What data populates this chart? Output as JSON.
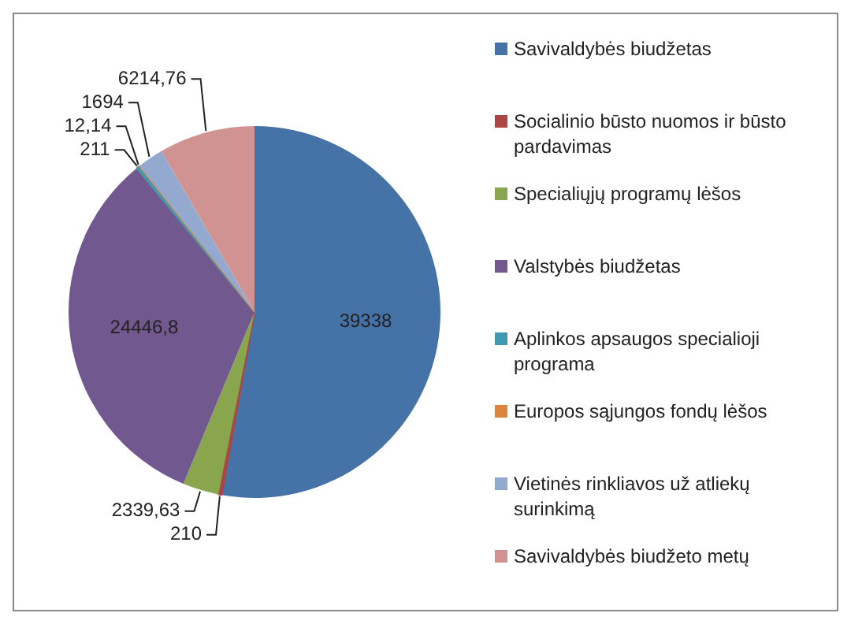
{
  "chart_data": {
    "type": "pie",
    "categories": [
      "Savivaldybės biudžetas",
      "Socialinio būsto nuomos ir būsto pardavimas",
      "Specialiųjų programų lėšos",
      "Valstybės biudžetas",
      "Aplinkos apsaugos specialioji programa",
      "Europos sąjungos fondų lėšos",
      "Vietinės rinkliavos už atliekų surinkimą",
      "Savivaldybės biudžeto metų"
    ],
    "values": [
      39338,
      210,
      2339.63,
      24446.8,
      211,
      12.14,
      1694,
      6214.76
    ],
    "value_labels": [
      "39338",
      "210",
      "2339,63",
      "24446,8",
      "211",
      "12,14",
      "1694",
      "6214,76"
    ],
    "colors": [
      "#4572a7",
      "#aa4643",
      "#89a54e",
      "#71588f",
      "#4198af",
      "#db843d",
      "#93a9cf",
      "#d19392"
    ],
    "legend": "right"
  }
}
